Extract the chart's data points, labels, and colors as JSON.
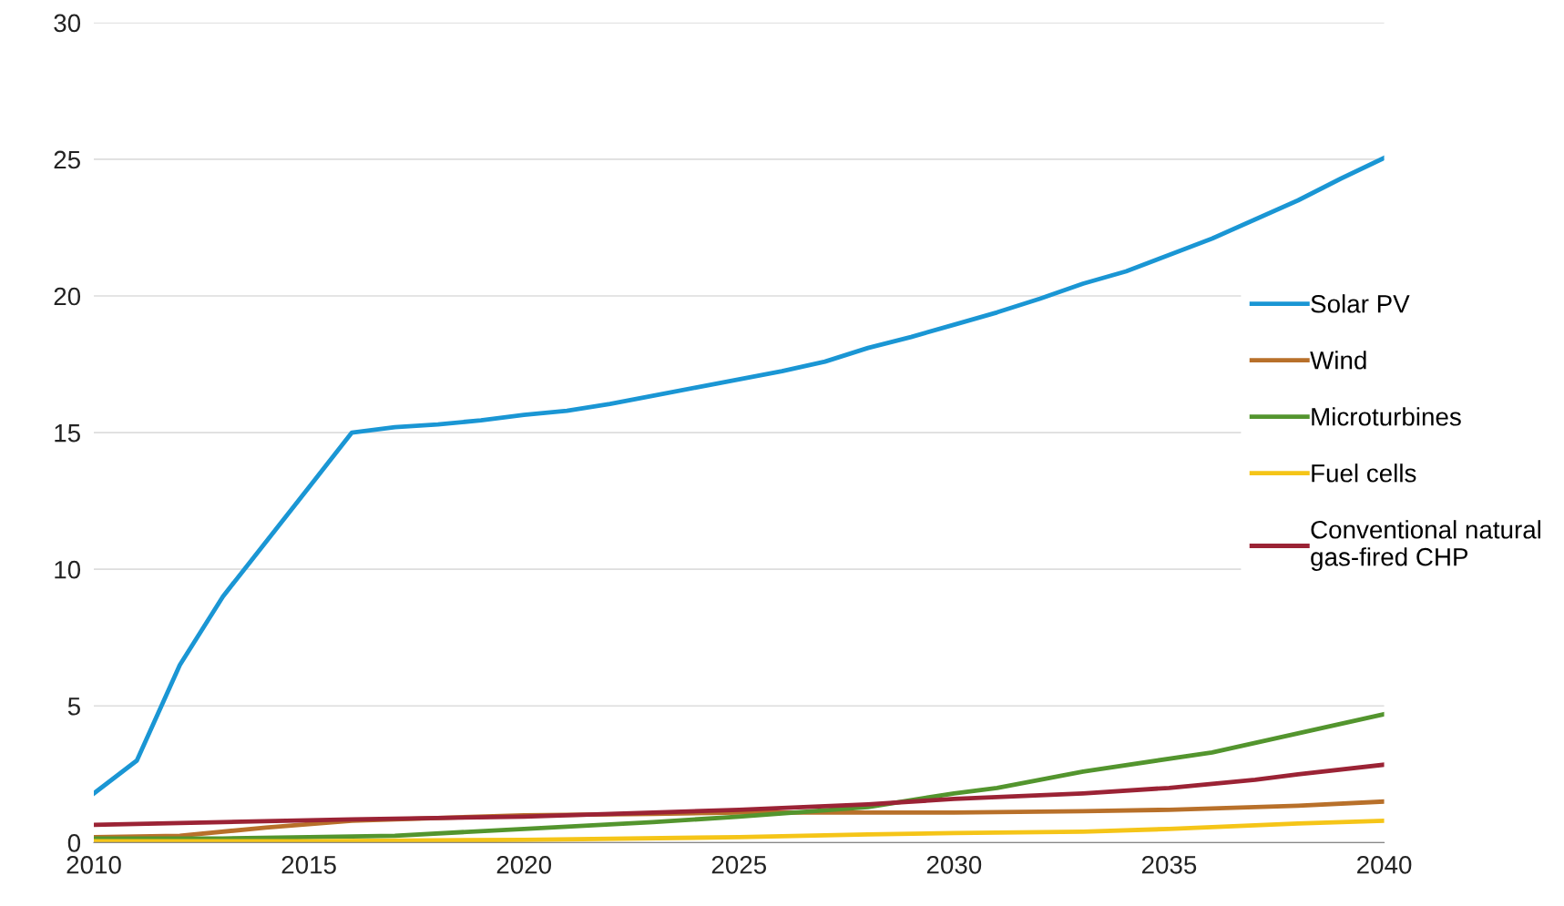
{
  "chart_data": {
    "type": "line",
    "xlim": [
      2010,
      2040
    ],
    "xticks": [
      2010,
      2015,
      2020,
      2025,
      2030,
      2035,
      2040
    ],
    "ylim": [
      0,
      30
    ],
    "yticks": [
      0,
      5,
      10,
      15,
      20,
      25,
      30
    ],
    "grid": "y",
    "legend": "right",
    "marker": "none",
    "line_style": "solid",
    "series": [
      {
        "name": "Solar PV",
        "color": "#1a96d4",
        "x": [
          2010,
          2011,
          2012,
          2013,
          2014,
          2015,
          2016,
          2017,
          2018,
          2019,
          2020,
          2021,
          2022,
          2023,
          2024,
          2025,
          2026,
          2027,
          2028,
          2029,
          2030,
          2031,
          2032,
          2033,
          2034,
          2035,
          2036,
          2037,
          2038,
          2039,
          2040
        ],
        "values": [
          1.8,
          3.0,
          6.5,
          9.0,
          11.0,
          13.0,
          15.0,
          15.2,
          15.3,
          15.45,
          15.65,
          15.8,
          16.05,
          16.35,
          16.65,
          16.95,
          17.25,
          17.6,
          18.1,
          18.5,
          18.95,
          19.4,
          19.9,
          20.45,
          20.9,
          21.5,
          22.1,
          22.8,
          23.5,
          24.3,
          25.05
        ]
      },
      {
        "name": "Wind",
        "color": "#b8702a",
        "x": [
          2010,
          2012,
          2014,
          2016,
          2018,
          2020,
          2023,
          2025,
          2028,
          2030,
          2033,
          2035,
          2038,
          2040
        ],
        "values": [
          0.2,
          0.25,
          0.55,
          0.8,
          0.9,
          1.0,
          1.05,
          1.1,
          1.1,
          1.1,
          1.15,
          1.2,
          1.35,
          1.5
        ]
      },
      {
        "name": "Microturbines",
        "color": "#53952e",
        "x": [
          2010,
          2013,
          2015,
          2017,
          2020,
          2023,
          2025,
          2028,
          2030,
          2031,
          2033,
          2036,
          2038,
          2040
        ],
        "values": [
          0.15,
          0.15,
          0.2,
          0.25,
          0.5,
          0.75,
          0.95,
          1.3,
          1.8,
          2.0,
          2.6,
          3.3,
          4.0,
          4.7
        ]
      },
      {
        "name": "Fuel cells",
        "color": "#f5c518",
        "x": [
          2010,
          2015,
          2020,
          2025,
          2028,
          2030,
          2033,
          2035,
          2038,
          2040
        ],
        "values": [
          0.05,
          0.05,
          0.1,
          0.2,
          0.3,
          0.35,
          0.4,
          0.5,
          0.7,
          0.8
        ]
      },
      {
        "name": "Conventional natural\ngas-fired CHP",
        "color": "#9b2335",
        "x": [
          2010,
          2013,
          2016,
          2020,
          2023,
          2025,
          2028,
          2030,
          2033,
          2035,
          2037,
          2038,
          2040
        ],
        "values": [
          0.65,
          0.75,
          0.85,
          0.95,
          1.1,
          1.2,
          1.4,
          1.6,
          1.8,
          2.0,
          2.3,
          2.5,
          2.85
        ]
      }
    ]
  }
}
